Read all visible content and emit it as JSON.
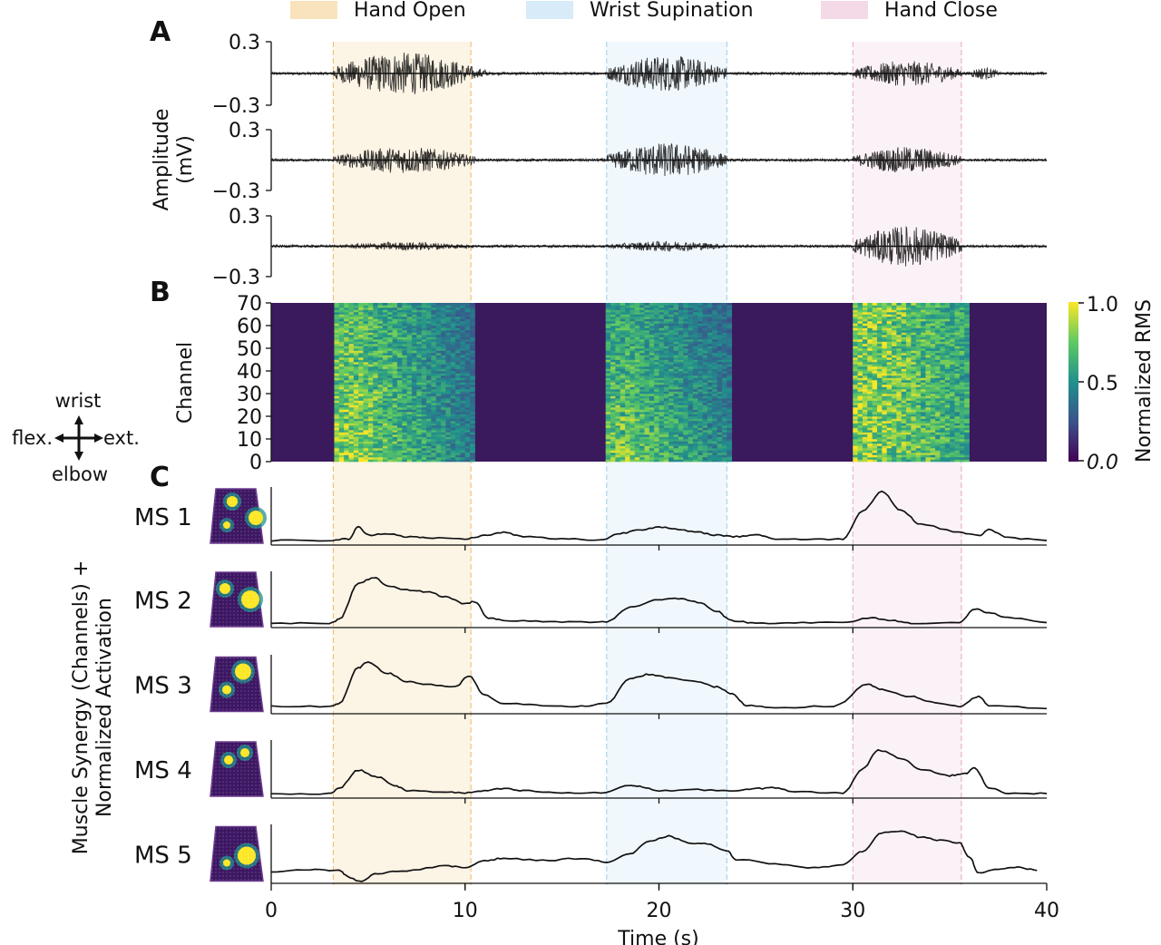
{
  "legend": [
    {
      "label": "Hand Open",
      "color": "#f6d7a0"
    },
    {
      "label": "Wrist Supination",
      "color": "#cde6f7"
    },
    {
      "label": "Hand Close",
      "color": "#f1cfe1"
    }
  ],
  "panel_letters": {
    "a": "A",
    "b": "B",
    "c": "C"
  },
  "orientation": {
    "top": "wrist",
    "bottom": "elbow",
    "left": "flex.",
    "right": "ext."
  },
  "chart_data": {
    "type": "line",
    "x_range": [
      0,
      40
    ],
    "xlabel": "Time (s)",
    "x_ticks": [
      "0",
      "10",
      "20",
      "30",
      "40"
    ],
    "gesture_windows": [
      {
        "label": "Hand Open",
        "start": 3.2,
        "end": 10.3,
        "color": "#f6d7a0",
        "edge": "#efb768"
      },
      {
        "label": "Wrist Supination",
        "start": 17.3,
        "end": 23.5,
        "color": "#cde6f7",
        "edge": "#9ccbea"
      },
      {
        "label": "Hand Close",
        "start": 30.0,
        "end": 35.6,
        "color": "#f1cfe1",
        "edge": "#e3a7c5"
      }
    ],
    "panel_a": {
      "ylabel_line1": "Amplitude",
      "ylabel_line2": "(mV)",
      "ylim": [
        -0.3,
        0.3
      ],
      "y_tick_top": "0.3",
      "y_tick_bottom": "−0.3",
      "traces": [
        {
          "segments": [
            {
              "start": 3.2,
              "end": 10.5,
              "amp": 0.2
            },
            {
              "start": 10.5,
              "end": 11.2,
              "amp": 0.05
            },
            {
              "start": 17.3,
              "end": 23.5,
              "amp": 0.17
            },
            {
              "start": 30.0,
              "end": 35.6,
              "amp": 0.12
            },
            {
              "start": 36.0,
              "end": 37.5,
              "amp": 0.06
            }
          ]
        },
        {
          "segments": [
            {
              "start": 3.2,
              "end": 10.5,
              "amp": 0.13
            },
            {
              "start": 17.3,
              "end": 23.5,
              "amp": 0.17
            },
            {
              "start": 30.0,
              "end": 35.6,
              "amp": 0.13
            }
          ]
        },
        {
          "segments": [
            {
              "start": 3.5,
              "end": 10.5,
              "amp": 0.04
            },
            {
              "start": 17.3,
              "end": 23.5,
              "amp": 0.05
            },
            {
              "start": 30.0,
              "end": 35.6,
              "amp": 0.2
            }
          ]
        }
      ]
    },
    "panel_b": {
      "type": "heatmap",
      "ylabel": "Channel",
      "channels": 70,
      "y_ticks": [
        0,
        10,
        20,
        30,
        40,
        50,
        60,
        70
      ],
      "colorbar_label": "Normalized RMS",
      "colorbar_ticks": [
        "1.0",
        "0.5",
        "0.0"
      ],
      "channel_profiles": [
        {
          "start": 3.2,
          "end": 10.3,
          "decay": 0.6,
          "lo_ch": 0,
          "hi_ch": 70,
          "strength_low": 1.0,
          "strength_high": 0.85
        },
        {
          "start": 17.3,
          "end": 23.5,
          "decay": 0.5,
          "lo_ch": 0,
          "hi_ch": 70,
          "strength_low": 0.95,
          "strength_high": 0.7
        },
        {
          "start": 30.0,
          "end": 35.6,
          "decay": 0.3,
          "lo_ch": 0,
          "hi_ch": 70,
          "strength_low": 1.0,
          "strength_high": 1.0
        }
      ]
    },
    "panel_c": {
      "ylabel_line1": "Muscle Synergy (Channels) +",
      "ylabel_line2": "Normalized Activation",
      "synergies": [
        {
          "name": "MS 1",
          "points": [
            [
              0,
              0.05
            ],
            [
              3,
              0.05
            ],
            [
              4,
              0.08
            ],
            [
              4.5,
              0.3
            ],
            [
              5,
              0.15
            ],
            [
              6,
              0.18
            ],
            [
              7,
              0.12
            ],
            [
              8,
              0.1
            ],
            [
              10,
              0.08
            ],
            [
              11,
              0.14
            ],
            [
              12,
              0.2
            ],
            [
              13,
              0.12
            ],
            [
              15,
              0.08
            ],
            [
              17,
              0.06
            ],
            [
              18,
              0.18
            ],
            [
              19,
              0.25
            ],
            [
              20,
              0.3
            ],
            [
              21,
              0.25
            ],
            [
              22,
              0.2
            ],
            [
              23,
              0.15
            ],
            [
              24,
              0.12
            ],
            [
              25,
              0.16
            ],
            [
              26,
              0.08
            ],
            [
              28,
              0.07
            ],
            [
              29.5,
              0.08
            ],
            [
              30.5,
              0.6
            ],
            [
              31.5,
              0.95
            ],
            [
              32.5,
              0.6
            ],
            [
              33.5,
              0.35
            ],
            [
              35.5,
              0.2
            ],
            [
              36.5,
              0.14
            ],
            [
              37,
              0.25
            ],
            [
              38,
              0.1
            ],
            [
              40,
              0.05
            ]
          ]
        },
        {
          "name": "MS 2",
          "points": [
            [
              0,
              0.05
            ],
            [
              3,
              0.05
            ],
            [
              3.5,
              0.12
            ],
            [
              4.5,
              0.8
            ],
            [
              5.3,
              0.92
            ],
            [
              6,
              0.75
            ],
            [
              7,
              0.68
            ],
            [
              8,
              0.65
            ],
            [
              9,
              0.55
            ],
            [
              10,
              0.42
            ],
            [
              10.5,
              0.46
            ],
            [
              11.2,
              0.15
            ],
            [
              12,
              0.1
            ],
            [
              14,
              0.08
            ],
            [
              16,
              0.07
            ],
            [
              17.3,
              0.08
            ],
            [
              18.5,
              0.35
            ],
            [
              20,
              0.5
            ],
            [
              21,
              0.52
            ],
            [
              22,
              0.45
            ],
            [
              23,
              0.28
            ],
            [
              23.7,
              0.1
            ],
            [
              25,
              0.05
            ],
            [
              27,
              0.06
            ],
            [
              29.5,
              0.06
            ],
            [
              31,
              0.15
            ],
            [
              32,
              0.1
            ],
            [
              33,
              0.05
            ],
            [
              35.5,
              0.06
            ],
            [
              36.3,
              0.32
            ],
            [
              37,
              0.25
            ],
            [
              38,
              0.15
            ],
            [
              40,
              0.06
            ]
          ]
        },
        {
          "name": "MS 3",
          "points": [
            [
              0,
              0.1
            ],
            [
              3,
              0.1
            ],
            [
              3.5,
              0.15
            ],
            [
              4.5,
              0.8
            ],
            [
              5,
              0.9
            ],
            [
              6,
              0.7
            ],
            [
              7,
              0.55
            ],
            [
              8,
              0.5
            ],
            [
              9.5,
              0.45
            ],
            [
              10.2,
              0.65
            ],
            [
              11,
              0.3
            ],
            [
              12,
              0.15
            ],
            [
              14,
              0.12
            ],
            [
              16,
              0.1
            ],
            [
              17.3,
              0.15
            ],
            [
              18.5,
              0.6
            ],
            [
              19.5,
              0.68
            ],
            [
              20.5,
              0.62
            ],
            [
              22,
              0.55
            ],
            [
              23,
              0.45
            ],
            [
              23.8,
              0.32
            ],
            [
              24.5,
              0.12
            ],
            [
              26,
              0.08
            ],
            [
              29,
              0.1
            ],
            [
              30.8,
              0.5
            ],
            [
              31.5,
              0.4
            ],
            [
              33,
              0.28
            ],
            [
              34,
              0.18
            ],
            [
              35.5,
              0.1
            ],
            [
              36.5,
              0.28
            ],
            [
              37,
              0.12
            ],
            [
              40,
              0.06
            ]
          ]
        },
        {
          "name": "MS 4",
          "points": [
            [
              0,
              0.04
            ],
            [
              3,
              0.05
            ],
            [
              3.5,
              0.15
            ],
            [
              4.5,
              0.48
            ],
            [
              5.5,
              0.35
            ],
            [
              6.5,
              0.18
            ],
            [
              7,
              0.1
            ],
            [
              9,
              0.08
            ],
            [
              10,
              0.06
            ],
            [
              11,
              0.1
            ],
            [
              12,
              0.14
            ],
            [
              13,
              0.1
            ],
            [
              15,
              0.06
            ],
            [
              17,
              0.06
            ],
            [
              18.5,
              0.2
            ],
            [
              19,
              0.18
            ],
            [
              20,
              0.1
            ],
            [
              22,
              0.12
            ],
            [
              24,
              0.1
            ],
            [
              25,
              0.14
            ],
            [
              26,
              0.16
            ],
            [
              27,
              0.08
            ],
            [
              29.5,
              0.06
            ],
            [
              30.5,
              0.5
            ],
            [
              31.3,
              0.85
            ],
            [
              32.5,
              0.7
            ],
            [
              33.5,
              0.5
            ],
            [
              35,
              0.38
            ],
            [
              35.8,
              0.42
            ],
            [
              36.3,
              0.52
            ],
            [
              37,
              0.15
            ],
            [
              38,
              0.06
            ],
            [
              40,
              0.05
            ]
          ]
        },
        {
          "name": "MS 5",
          "points": [
            [
              0,
              0.18
            ],
            [
              2,
              0.22
            ],
            [
              3.5,
              0.2
            ],
            [
              4,
              0.08
            ],
            [
              4.5,
              0.0
            ],
            [
              5.5,
              0.15
            ],
            [
              7,
              0.2
            ],
            [
              9,
              0.28
            ],
            [
              10,
              0.25
            ],
            [
              11,
              0.38
            ],
            [
              12,
              0.42
            ],
            [
              14,
              0.38
            ],
            [
              16,
              0.42
            ],
            [
              17.3,
              0.35
            ],
            [
              18.5,
              0.5
            ],
            [
              19.5,
              0.72
            ],
            [
              20.5,
              0.82
            ],
            [
              21.5,
              0.7
            ],
            [
              22.5,
              0.68
            ],
            [
              23.5,
              0.55
            ],
            [
              24,
              0.4
            ],
            [
              26,
              0.32
            ],
            [
              28,
              0.25
            ],
            [
              29.5,
              0.3
            ],
            [
              30.5,
              0.55
            ],
            [
              31.5,
              0.88
            ],
            [
              32.5,
              0.92
            ],
            [
              33.5,
              0.8
            ],
            [
              34.5,
              0.74
            ],
            [
              35.5,
              0.7
            ],
            [
              36,
              0.45
            ],
            [
              36.5,
              0.15
            ],
            [
              37.5,
              0.22
            ],
            [
              38.5,
              0.26
            ],
            [
              39.5,
              0.2
            ]
          ]
        }
      ]
    }
  }
}
